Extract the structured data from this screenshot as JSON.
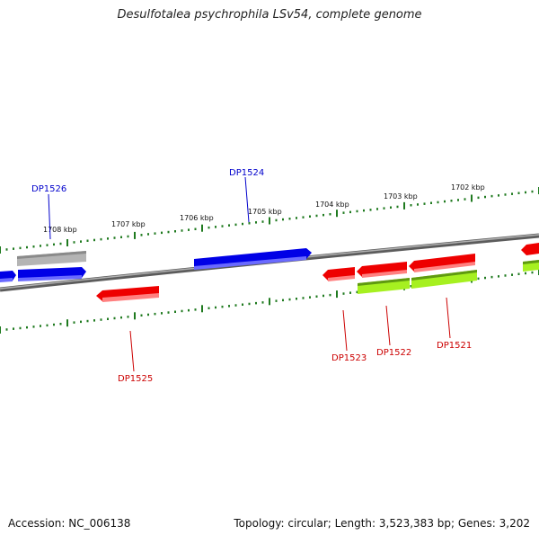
{
  "title": "Desulfotalea psychrophila LSv54, complete genome",
  "footer": {
    "accession": "Accession: NC_006138",
    "summary": "Topology: circular; Length: 3,523,383 bp; Genes: 3,202"
  },
  "colors": {
    "backbone": "#7a7a7a",
    "ticks": "#1f7a1f",
    "forward_gene": "#0000e6",
    "reverse_gene": "#ee0000",
    "grey_gene": "#a8a8a8",
    "lime_gene": "#a6f020",
    "label_forward": "#0000cc",
    "label_reverse": "#cc0000"
  },
  "scale_labels": [
    {
      "text": "1708 kbp"
    },
    {
      "text": "1707 kbp"
    },
    {
      "text": "1706 kbp"
    },
    {
      "text": "1705 kbp"
    },
    {
      "text": "1704 kbp"
    },
    {
      "text": "1703 kbp"
    },
    {
      "text": "1702 kbp"
    }
  ],
  "gene_labels": [
    {
      "id": "DP1526",
      "strand": "forward"
    },
    {
      "id": "DP1524",
      "strand": "forward"
    },
    {
      "id": "DP1525",
      "strand": "reverse"
    },
    {
      "id": "DP1523",
      "strand": "reverse"
    },
    {
      "id": "DP1522",
      "strand": "reverse"
    },
    {
      "id": "DP1521",
      "strand": "reverse"
    }
  ]
}
